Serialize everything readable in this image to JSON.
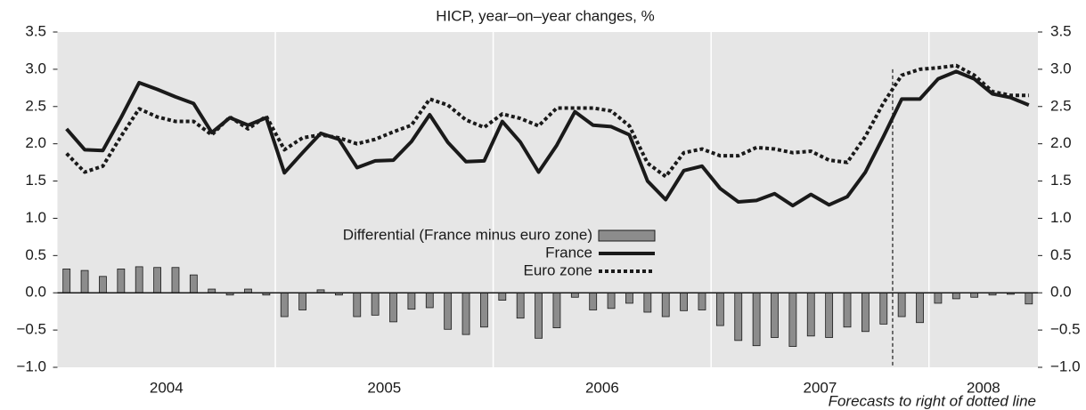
{
  "chart_data": {
    "type": "combo",
    "title": "HICP, year–on–year changes, %",
    "years": [
      "2004",
      "2005",
      "2006",
      "2007",
      "2008"
    ],
    "forecast_start": 46,
    "footnote": "Forecasts to right of dotted line",
    "ylim": [
      -1.0,
      3.5
    ],
    "yticks": [
      {
        "value": -1.0,
        "label": "−1.0"
      },
      {
        "value": -0.5,
        "label": "−0.5"
      },
      {
        "value": 0,
        "label": "0.0"
      },
      {
        "value": 0.5,
        "label": "0.5"
      },
      {
        "value": 1.0,
        "label": "1.0"
      },
      {
        "value": 1.5,
        "label": "1.5"
      },
      {
        "value": 2.0,
        "label": "2.0"
      },
      {
        "value": 2.5,
        "label": "2.5"
      },
      {
        "value": 3.0,
        "label": "3.0"
      },
      {
        "value": 3.5,
        "label": "3.5"
      }
    ],
    "series": [
      {
        "name": "Differential (France minus euro zone)",
        "type": "bar",
        "color": "#8c8c8c",
        "values": [
          0.32,
          0.3,
          0.22,
          0.32,
          0.35,
          0.34,
          0.34,
          0.24,
          0.05,
          -0.03,
          0.05,
          -0.03,
          -0.32,
          -0.23,
          0.04,
          -0.03,
          -0.32,
          -0.3,
          -0.39,
          -0.22,
          -0.2,
          -0.49,
          -0.56,
          -0.46,
          -0.1,
          -0.34,
          -0.61,
          -0.47,
          -0.06,
          -0.23,
          -0.21,
          -0.14,
          -0.26,
          -0.32,
          -0.24,
          -0.23,
          -0.44,
          -0.64,
          -0.71,
          -0.6,
          -0.72,
          -0.58,
          -0.6,
          -0.46,
          -0.52,
          -0.42,
          -0.32,
          -0.4,
          -0.14,
          -0.08,
          -0.06,
          -0.03,
          -0.02,
          -0.15
        ]
      },
      {
        "name": "France",
        "type": "line",
        "color": "#1a1a1a",
        "dash": "solid",
        "values": [
          2.2,
          1.92,
          1.91,
          2.35,
          2.82,
          2.73,
          2.63,
          2.54,
          2.15,
          2.35,
          2.25,
          2.35,
          1.61,
          1.88,
          2.14,
          2.06,
          1.68,
          1.77,
          1.78,
          2.03,
          2.39,
          2.02,
          1.76,
          1.77,
          2.3,
          2.02,
          1.62,
          1.98,
          2.43,
          2.25,
          2.23,
          2.12,
          1.5,
          1.25,
          1.64,
          1.7,
          1.4,
          1.22,
          1.24,
          1.33,
          1.17,
          1.32,
          1.18,
          1.29,
          1.62,
          2.1,
          2.6,
          2.6,
          2.87,
          2.97,
          2.87,
          2.67,
          2.62,
          2.52
        ]
      },
      {
        "name": "Euro zone",
        "type": "line",
        "color": "#1a1a1a",
        "dash": "dotted",
        "values": [
          1.87,
          1.62,
          1.7,
          2.1,
          2.47,
          2.36,
          2.3,
          2.3,
          2.12,
          2.36,
          2.2,
          2.37,
          1.92,
          2.08,
          2.12,
          2.08,
          2.0,
          2.06,
          2.16,
          2.25,
          2.6,
          2.52,
          2.32,
          2.22,
          2.4,
          2.34,
          2.24,
          2.48,
          2.48,
          2.48,
          2.44,
          2.24,
          1.74,
          1.56,
          1.88,
          1.93,
          1.84,
          1.84,
          1.95,
          1.93,
          1.88,
          1.9,
          1.78,
          1.75,
          2.1,
          2.55,
          2.92,
          3.0,
          3.02,
          3.05,
          2.92,
          2.7,
          2.65,
          2.65
        ]
      }
    ]
  }
}
